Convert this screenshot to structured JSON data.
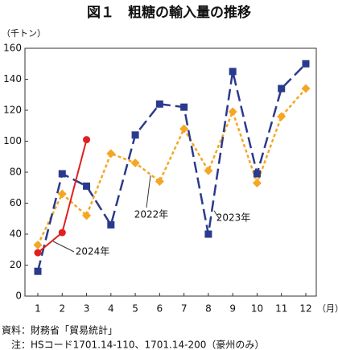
{
  "chart_data": {
    "type": "line",
    "title": "図１　粗糖の輸入量の推移",
    "y_label": "（千トン）",
    "x_label": "（月）",
    "categories": [
      "1",
      "2",
      "3",
      "4",
      "5",
      "6",
      "7",
      "8",
      "9",
      "10",
      "11",
      "12"
    ],
    "series": [
      {
        "name": "2022年",
        "color": "#f5a623",
        "marker": "diamond",
        "dash": "4,3",
        "values": [
          33,
          66,
          52,
          92,
          86,
          74,
          108,
          81,
          119,
          73,
          116,
          134
        ]
      },
      {
        "name": "2023年",
        "color": "#2b3a8c",
        "marker": "square",
        "dash": "14,6",
        "values": [
          16,
          79,
          71,
          46,
          104,
          124,
          122,
          40,
          145,
          79,
          134,
          150
        ]
      },
      {
        "name": "2024年",
        "color": "#e02020",
        "marker": "circle",
        "dash": "none",
        "values": [
          28,
          41,
          101,
          null,
          null,
          null,
          null,
          null,
          null,
          null,
          null,
          null
        ]
      }
    ],
    "ylim": [
      0,
      160
    ],
    "yticks": [
      0,
      20,
      40,
      60,
      80,
      100,
      120,
      140,
      160
    ],
    "grid": false,
    "source": [
      "資料：財務省「貿易統計」",
      "　注：HSコード1701.14-110、1701.14-200（豪州のみ）"
    ]
  }
}
